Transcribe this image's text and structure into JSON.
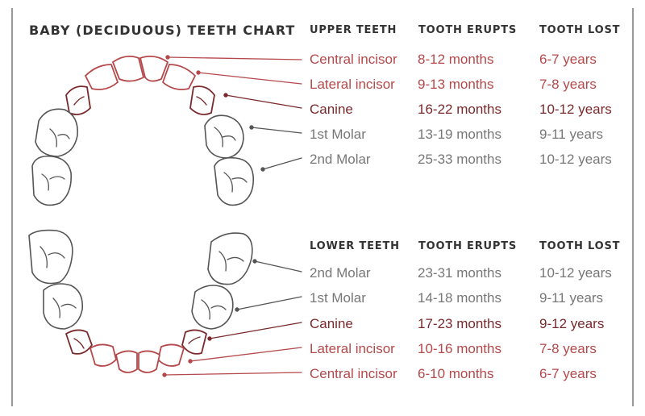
{
  "title": "BABY (DECIDUOUS) TEETH CHART",
  "colors": {
    "incisor": "#b5484a",
    "canine": "#7a2a2c",
    "molar": "#777777",
    "outline": "#555555",
    "heading": "#333333"
  },
  "upper": {
    "header_teeth": "UPPER TEETH",
    "header_erupts": "TOOTH ERUPTS",
    "header_lost": "TOOTH LOST",
    "rows": [
      {
        "tooth": "Central incisor",
        "erupts": "8-12 months",
        "lost": "6-7 years",
        "kind": "incisor"
      },
      {
        "tooth": "Lateral incisor",
        "erupts": "9-13 months",
        "lost": "7-8 years",
        "kind": "incisor"
      },
      {
        "tooth": "Canine",
        "erupts": "16-22 months",
        "lost": "10-12 years",
        "kind": "canine"
      },
      {
        "tooth": "1st Molar",
        "erupts": "13-19 months",
        "lost": "9-11 years",
        "kind": "molar"
      },
      {
        "tooth": "2nd Molar",
        "erupts": "25-33 months",
        "lost": "10-12 years",
        "kind": "molar"
      }
    ]
  },
  "lower": {
    "header_teeth": "LOWER TEETH",
    "header_erupts": "TOOTH ERUPTS",
    "header_lost": "TOOTH LOST",
    "rows": [
      {
        "tooth": "2nd Molar",
        "erupts": "23-31 months",
        "lost": "10-12 years",
        "kind": "molar"
      },
      {
        "tooth": "1st Molar",
        "erupts": "14-18 months",
        "lost": "9-11 years",
        "kind": "molar"
      },
      {
        "tooth": "Canine",
        "erupts": "17-23 months",
        "lost": "9-12 years",
        "kind": "canine"
      },
      {
        "tooth": "Lateral incisor",
        "erupts": "10-16 months",
        "lost": "7-8 years",
        "kind": "incisor"
      },
      {
        "tooth": "Central incisor",
        "erupts": "6-10 months",
        "lost": "6-7 years",
        "kind": "incisor"
      }
    ]
  }
}
